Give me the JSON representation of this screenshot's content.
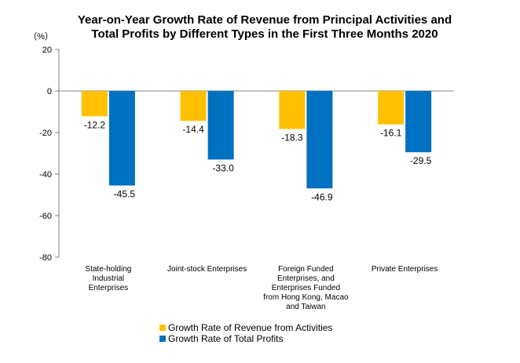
{
  "chart_data": {
    "type": "bar",
    "title_lines": [
      "Year-on-Year Growth Rate of Revenue from Principal Activities  and",
      "Total Profits by Different Types in the First Three Months 2020"
    ],
    "unit_label": "（%）",
    "ylim": [
      -80,
      20
    ],
    "yticks": [
      20,
      0,
      -20,
      -40,
      -60,
      -80
    ],
    "grid": false,
    "legend_position": "bottom",
    "categories": [
      [
        "State-holding",
        "Industrial",
        "Enterprises"
      ],
      [
        "Joint-stock Enterprises"
      ],
      [
        "Foreign Funded",
        "Enterprises, and",
        "Enterprises Funded",
        "from Hong Kong, Macao",
        "and Taiwan"
      ],
      [
        "Private Enterprises"
      ]
    ],
    "series": [
      {
        "name": "Growth Rate of Revenue from Activities",
        "color": "#FFC000",
        "values": [
          -12.2,
          -14.4,
          -18.3,
          -16.1
        ]
      },
      {
        "name": "Growth Rate of Total Profits",
        "color": "#0070C0",
        "values": [
          -45.5,
          -33.0,
          -46.9,
          -29.5
        ]
      }
    ]
  }
}
